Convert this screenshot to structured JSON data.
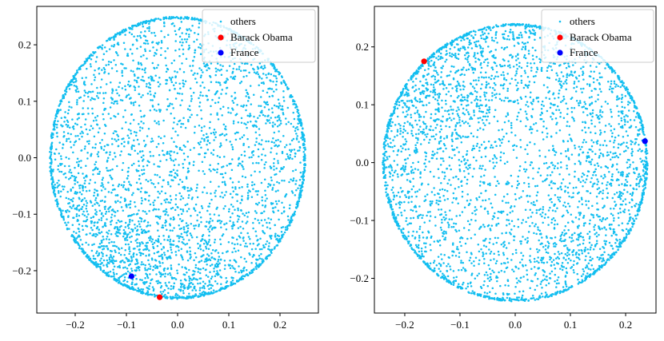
{
  "chart_data": [
    {
      "type": "scatter",
      "xlim": [
        -0.275,
        0.275
      ],
      "ylim": [
        -0.275,
        0.268
      ],
      "xticks": [
        -0.2,
        -0.1,
        0.0,
        0.1,
        0.2
      ],
      "xtick_labels": [
        "−0.2",
        "−0.1",
        "0.0",
        "0.1",
        "0.2"
      ],
      "yticks": [
        -0.2,
        -0.1,
        0.0,
        0.1,
        0.2
      ],
      "ytick_labels": [
        "−0.2",
        "−0.1",
        "0.0",
        "0.1",
        "0.2"
      ],
      "grid": false,
      "legend_position": "top-right",
      "cloud": {
        "center": [
          0.0,
          0.0
        ],
        "radius": 0.25,
        "n_points": 3000,
        "dense_edge": "bottom-left"
      },
      "series": [
        {
          "name": "others",
          "color": "#12bef0",
          "marker": "small-dot"
        },
        {
          "name": "Barack Obama",
          "color": "#ff0000",
          "marker": "dot",
          "points": [
            [
              -0.035,
              -0.247
            ]
          ]
        },
        {
          "name": "France",
          "color": "#0000ff",
          "marker": "dot",
          "points": [
            [
              -0.09,
              -0.21
            ]
          ]
        }
      ]
    },
    {
      "type": "scatter",
      "xlim": [
        -0.255,
        0.255
      ],
      "ylim": [
        -0.26,
        0.27
      ],
      "xticks": [
        -0.2,
        -0.1,
        0.0,
        0.1,
        0.2
      ],
      "xtick_labels": [
        "−0.2",
        "−0.1",
        "0.0",
        "0.1",
        "0.2"
      ],
      "yticks": [
        -0.2,
        -0.1,
        0.0,
        0.1,
        0.2
      ],
      "ytick_labels": [
        "−0.2",
        "−0.1",
        "0.0",
        "0.1",
        "0.2"
      ],
      "grid": false,
      "legend_position": "top-right",
      "cloud": {
        "center": [
          0.0,
          0.0
        ],
        "radius": 0.24,
        "n_points": 3000,
        "dense_edge": "top-left and bottom-right"
      },
      "series": [
        {
          "name": "others",
          "color": "#12bef0",
          "marker": "small-dot"
        },
        {
          "name": "Barack Obama",
          "color": "#ff0000",
          "marker": "dot",
          "points": [
            [
              -0.165,
              0.175
            ]
          ]
        },
        {
          "name": "France",
          "color": "#0000ff",
          "marker": "dot",
          "points": [
            [
              0.235,
              0.037
            ]
          ]
        }
      ]
    }
  ]
}
